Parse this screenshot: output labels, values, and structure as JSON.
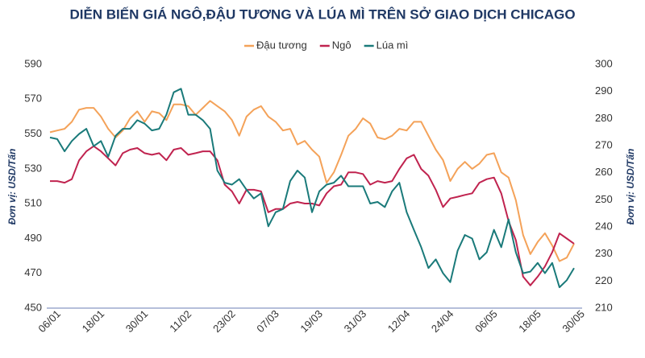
{
  "chart_data": {
    "type": "line",
    "title": "DIỄN BIẾN GIÁ NGÔ,ĐẬU TƯƠNG VÀ LÚA MÌ TRÊN SỞ GIAO DỊCH CHICAGO",
    "y_label": "Đơn vị: USD/Tấn",
    "y2_label": "Đơn vị: USD/Tấn",
    "categories": [
      "06/01",
      null,
      null,
      null,
      null,
      null,
      "18/01",
      null,
      null,
      null,
      null,
      null,
      "30/01",
      null,
      null,
      null,
      null,
      null,
      "11/02",
      null,
      null,
      null,
      null,
      null,
      "23/02",
      null,
      null,
      null,
      null,
      null,
      "07/03",
      null,
      null,
      null,
      null,
      null,
      "19/03",
      null,
      null,
      null,
      null,
      null,
      "31/03",
      null,
      null,
      null,
      null,
      null,
      "12/04",
      null,
      null,
      null,
      null,
      null,
      "24/04",
      null,
      null,
      null,
      null,
      null,
      "06/05",
      null,
      null,
      null,
      null,
      null,
      "18/05",
      null,
      null,
      null,
      null,
      null,
      "30/05"
    ],
    "ylim": [
      450,
      590
    ],
    "yticks": [
      450,
      470,
      490,
      510,
      530,
      550,
      570,
      590
    ],
    "y2lim": [
      210,
      300
    ],
    "y2ticks": [
      210,
      220,
      230,
      240,
      250,
      260,
      270,
      280,
      290,
      300
    ],
    "legend": "top",
    "series": [
      {
        "name": "Đậu tương",
        "color": "#f4a259",
        "axis": "y",
        "values": [
          551,
          552,
          553,
          557,
          564,
          565,
          565,
          560,
          553,
          548,
          552,
          559,
          563,
          557,
          563,
          562,
          558,
          567,
          567,
          566,
          561,
          565,
          569,
          566,
          563,
          558,
          549,
          560,
          564,
          566,
          560,
          557,
          552,
          553,
          544,
          546,
          541,
          537,
          522,
          528,
          538,
          549,
          553,
          559,
          556,
          548,
          547,
          549,
          553,
          552,
          557,
          557,
          549,
          541,
          535,
          523,
          530,
          534,
          530,
          533,
          538,
          539,
          528,
          525,
          512,
          492,
          481,
          488,
          493,
          486,
          477,
          479,
          487
        ]
      },
      {
        "name": "Ngô",
        "color": "#c0234f",
        "axis": "y2",
        "values": [
          256.9,
          256.9,
          256.3,
          257.6,
          264.6,
          267.9,
          269.8,
          267.9,
          265.3,
          262.7,
          267.2,
          268.5,
          269.1,
          267.2,
          266.6,
          267.2,
          264.6,
          268.5,
          269.1,
          266.6,
          267.2,
          267.9,
          267.9,
          264.6,
          255.6,
          253.1,
          248.6,
          253.7,
          253.7,
          253.1,
          245.4,
          246.6,
          246.6,
          248.6,
          249.2,
          248.6,
          248.6,
          247.9,
          252.4,
          255,
          255.6,
          260.1,
          260.1,
          259.5,
          255.6,
          256.9,
          256.3,
          256.9,
          261.4,
          265.3,
          266.6,
          261.4,
          258.9,
          253.7,
          247.3,
          250.5,
          251.1,
          251.8,
          252.4,
          256.3,
          257.6,
          258.2,
          252.4,
          242.1,
          235.1,
          221.6,
          218.4,
          221.6,
          225.4,
          230.6,
          237.6,
          235.7,
          233.8
        ]
      },
      {
        "name": "Lúa mì",
        "color": "#1a7a7a",
        "axis": "y2",
        "values": [
          273.0,
          272.4,
          267.9,
          271.7,
          274.3,
          276.2,
          269.8,
          271.7,
          265.9,
          273.6,
          276.2,
          276.2,
          279.4,
          278.1,
          275.6,
          276.2,
          281.4,
          289.7,
          291.0,
          281.4,
          281.4,
          279.4,
          276.2,
          260.8,
          256.3,
          255.6,
          257.6,
          253.7,
          250.5,
          252.4,
          240.2,
          245.4,
          246.6,
          256.9,
          260.8,
          258.2,
          245.4,
          253.1,
          255.6,
          256.3,
          258.9,
          255.0,
          255.0,
          255.0,
          248.6,
          249.2,
          247.3,
          253.1,
          256.3,
          245.4,
          238.9,
          232.5,
          224.8,
          228.0,
          222.9,
          219.6,
          231.2,
          237.0,
          235.7,
          228.0,
          230.6,
          238.9,
          232.5,
          242.8,
          230.6,
          222.9,
          223.5,
          226.7,
          222.9,
          226.7,
          217.7,
          220.3,
          224.8
        ]
      }
    ]
  }
}
